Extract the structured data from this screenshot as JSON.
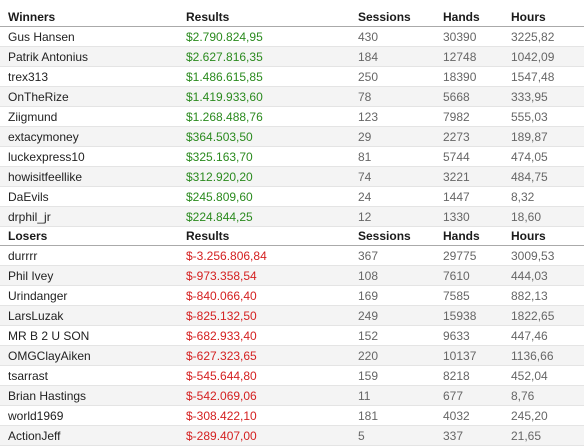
{
  "winners": {
    "headers": {
      "name": "Winners",
      "results": "Results",
      "sessions": "Sessions",
      "hands": "Hands",
      "hours": "Hours"
    },
    "rows": [
      {
        "name": "Gus Hansen",
        "results": "$2.790.824,95",
        "sessions": "430",
        "hands": "30390",
        "hours": "3225,82"
      },
      {
        "name": "Patrik Antonius",
        "results": "$2.627.816,35",
        "sessions": "184",
        "hands": "12748",
        "hours": "1042,09"
      },
      {
        "name": "trex313",
        "results": "$1.486.615,85",
        "sessions": "250",
        "hands": "18390",
        "hours": "1547,48"
      },
      {
        "name": "OnTheRize",
        "results": "$1.419.933,60",
        "sessions": "78",
        "hands": "5668",
        "hours": "333,95"
      },
      {
        "name": "Ziigmund",
        "results": "$1.268.488,76",
        "sessions": "123",
        "hands": "7982",
        "hours": "555,03"
      },
      {
        "name": "extacymoney",
        "results": "$364.503,50",
        "sessions": "29",
        "hands": "2273",
        "hours": "189,87"
      },
      {
        "name": "luckexpress10",
        "results": "$325.163,70",
        "sessions": "81",
        "hands": "5744",
        "hours": "474,05"
      },
      {
        "name": "howisitfeellike",
        "results": "$312.920,20",
        "sessions": "74",
        "hands": "3221",
        "hours": "484,75"
      },
      {
        "name": "DaEvils",
        "results": "$245.809,60",
        "sessions": "24",
        "hands": "1447",
        "hours": "8,32"
      },
      {
        "name": "drphil_jr",
        "results": "$224.844,25",
        "sessions": "12",
        "hands": "1330",
        "hours": "18,60"
      }
    ]
  },
  "losers": {
    "headers": {
      "name": "Losers",
      "results": "Results",
      "sessions": "Sessions",
      "hands": "Hands",
      "hours": "Hours"
    },
    "rows": [
      {
        "name": "durrrr",
        "results": "$-3.256.806,84",
        "sessions": "367",
        "hands": "29775",
        "hours": "3009,53"
      },
      {
        "name": "Phil Ivey",
        "results": "$-973.358,54",
        "sessions": "108",
        "hands": "7610",
        "hours": "444,03"
      },
      {
        "name": "Urindanger",
        "results": "$-840.066,40",
        "sessions": "169",
        "hands": "7585",
        "hours": "882,13"
      },
      {
        "name": "LarsLuzak",
        "results": "$-825.132,50",
        "sessions": "249",
        "hands": "15938",
        "hours": "1822,65"
      },
      {
        "name": "MR B 2 U SON",
        "results": "$-682.933,40",
        "sessions": "152",
        "hands": "9633",
        "hours": "447,46"
      },
      {
        "name": "OMGClayAiken",
        "results": "$-627.323,65",
        "sessions": "220",
        "hands": "10137",
        "hours": "1136,66"
      },
      {
        "name": "tsarrast",
        "results": "$-545.644,80",
        "sessions": "159",
        "hands": "8218",
        "hours": "452,04"
      },
      {
        "name": "Brian Hastings",
        "results": "$-542.069,06",
        "sessions": "11",
        "hands": "677",
        "hours": "8,76"
      },
      {
        "name": "world1969",
        "results": "$-308.422,10",
        "sessions": "181",
        "hands": "4032",
        "hours": "245,20"
      },
      {
        "name": "ActionJeff",
        "results": "$-289.407,00",
        "sessions": "5",
        "hands": "337",
        "hours": "21,65"
      }
    ]
  },
  "colors": {
    "win": "#2a8a1e",
    "loss": "#d42020",
    "row_stripe": "#f4f4f4"
  }
}
